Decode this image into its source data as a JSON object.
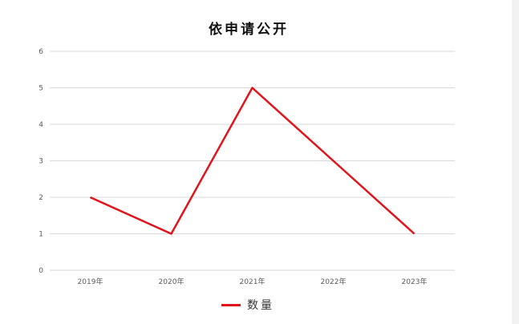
{
  "chart_data": {
    "type": "line",
    "title": "依申请公开",
    "categories": [
      "2019年",
      "2020年",
      "2021年",
      "2022年",
      "2023年"
    ],
    "series": [
      {
        "name": "数量",
        "values": [
          2,
          1,
          5,
          3,
          1
        ],
        "color": "#e0141b"
      }
    ],
    "ylim": [
      0,
      6
    ],
    "yticks": [
      0,
      1,
      2,
      3,
      4,
      5,
      6
    ],
    "grid": true,
    "legend": "bottom"
  }
}
